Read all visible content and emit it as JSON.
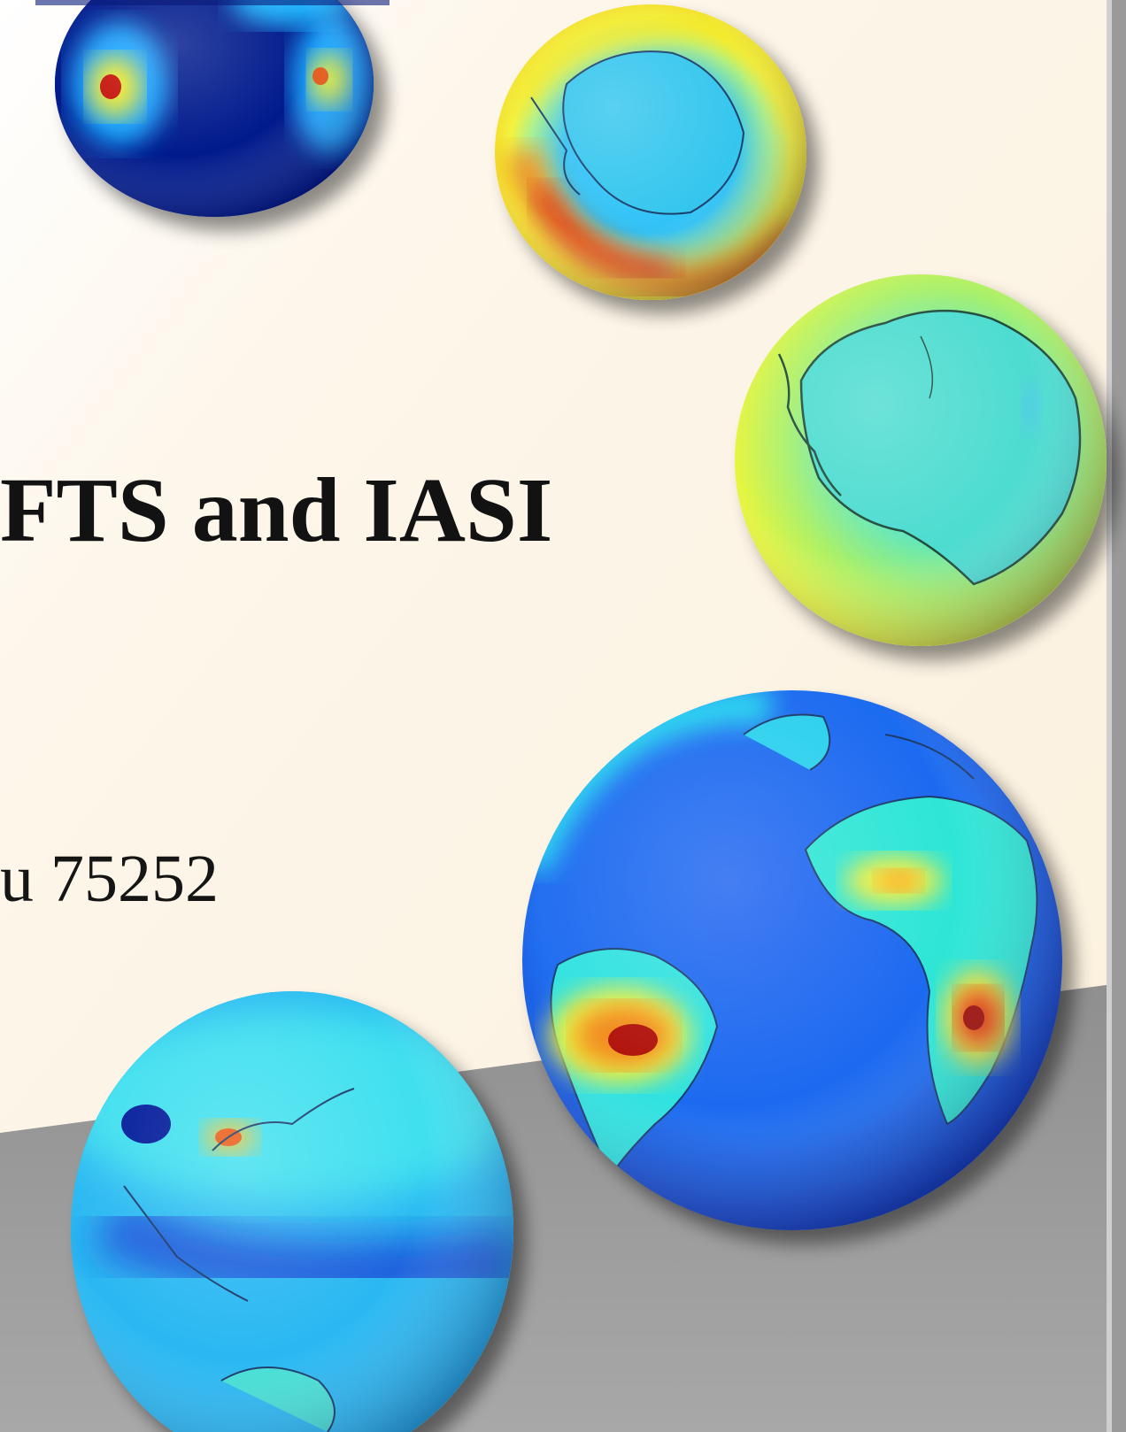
{
  "slide": {
    "title_fragment": "FTS and IASI",
    "subtitle_fragment": "u  75252"
  },
  "decor": {
    "globes": [
      "globe-top-dark",
      "globe-top-yellow",
      "globe-right-antarctica",
      "globe-large-atlantic",
      "globe-bottom-pacific"
    ],
    "colors": {
      "background_cream": "#fdf5e6",
      "band_gray": "#8d8d8d",
      "colormap_dark": "#00148a",
      "colormap_blue": "#1a5bff",
      "colormap_cyan": "#22d6f2",
      "colormap_yellow": "#e8f53a",
      "colormap_orange": "#ff8c1a",
      "colormap_red": "#c81a10"
    }
  }
}
